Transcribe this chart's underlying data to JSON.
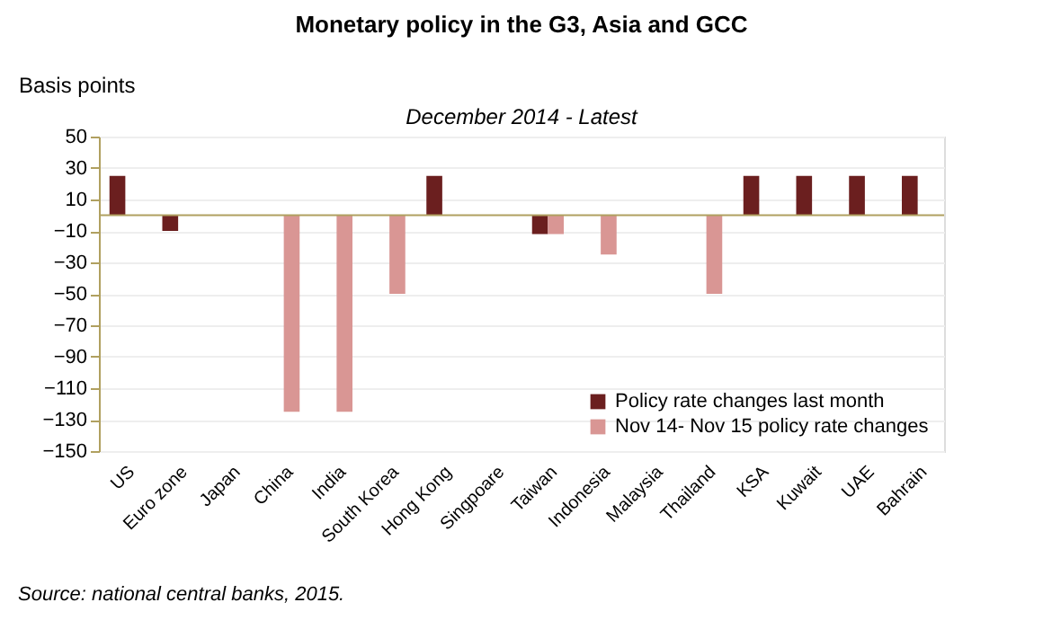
{
  "chart_data": {
    "type": "bar",
    "title": "Monetary policy in the G3, Asia and GCC",
    "subtitle": "December 2014 - Latest",
    "ylabel": "Basis points",
    "categories": [
      "US",
      "Euro zone",
      "Japan",
      "China",
      "India",
      "South Korea",
      "Hong Kong",
      "Singpoare",
      "Taiwan",
      "Indonesia",
      "Malaysia",
      "Thailand",
      "KSA",
      "Kuwait",
      "UAE",
      "Bahrain"
    ],
    "series": [
      {
        "name": "Policy rate changes last month",
        "color": "#6b1f1f",
        "values": [
          25,
          -10,
          0,
          0,
          0,
          0,
          25,
          0,
          -12,
          0,
          0,
          0,
          25,
          25,
          25,
          25
        ]
      },
      {
        "name": "Nov 14- Nov 15 policy rate changes",
        "color": "#d99694",
        "values": [
          0,
          0,
          0,
          -125,
          -125,
          -50,
          0,
          0,
          -12,
          -25,
          0,
          -50,
          0,
          0,
          0,
          0
        ]
      }
    ],
    "ylim": [
      -150,
      50
    ],
    "yticks": [
      -150,
      -130,
      -110,
      -90,
      -70,
      -50,
      -30,
      -10,
      10,
      30,
      50
    ],
    "grid": "y",
    "legend": "bottom right",
    "ref_lines": [
      {
        "axis": "y",
        "value": 0,
        "color": "#b0a060"
      }
    ],
    "annotations": [
      "Source: national central banks, 2015."
    ]
  }
}
